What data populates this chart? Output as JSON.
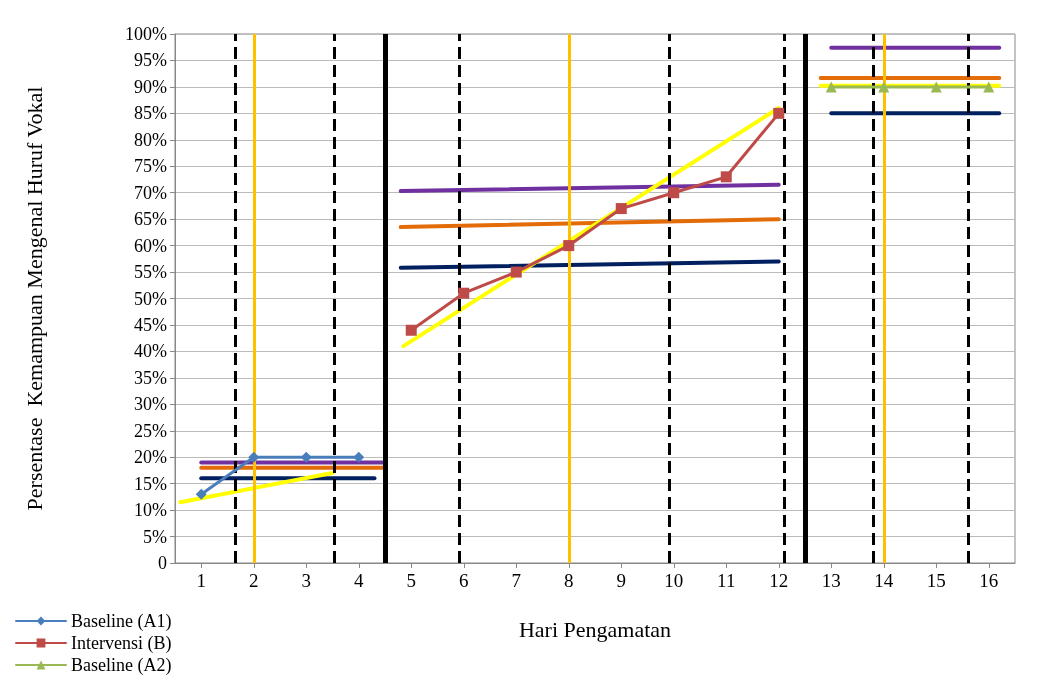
{
  "chart_data": {
    "type": "line",
    "xlabel": "Hari Pengamatan",
    "ylabel": "Persentase  Kemampuan Mengenal Huruf Vokal",
    "xlim": [
      0.5,
      16.5
    ],
    "xticks": [
      1,
      2,
      3,
      4,
      5,
      6,
      7,
      8,
      9,
      10,
      11,
      12,
      13,
      14,
      15,
      16
    ],
    "ylim": [
      0,
      100
    ],
    "yticks": [
      {
        "value": 0,
        "label": "0"
      },
      {
        "value": 5,
        "label": "5%"
      },
      {
        "value": 10,
        "label": "10%"
      },
      {
        "value": 15,
        "label": "15%"
      },
      {
        "value": 20,
        "label": "20%"
      },
      {
        "value": 25,
        "label": "25%"
      },
      {
        "value": 30,
        "label": "30%"
      },
      {
        "value": 35,
        "label": "35%"
      },
      {
        "value": 40,
        "label": "40%"
      },
      {
        "value": 45,
        "label": "45%"
      },
      {
        "value": 50,
        "label": "50%"
      },
      {
        "value": 55,
        "label": "55%"
      },
      {
        "value": 60,
        "label": "60%"
      },
      {
        "value": 65,
        "label": "65%"
      },
      {
        "value": 70,
        "label": "70%"
      },
      {
        "value": 75,
        "label": "75%"
      },
      {
        "value": 80,
        "label": "80%"
      },
      {
        "value": 85,
        "label": "85%"
      },
      {
        "value": 90,
        "label": "90%"
      },
      {
        "value": 95,
        "label": "95%"
      },
      {
        "value": 100,
        "label": "100%"
      }
    ],
    "grid": "y",
    "legend": "bottom left",
    "series": [
      {
        "name": "Baseline (A1)",
        "color": "#4a7ebb",
        "marker": "diamond",
        "x": [
          1,
          2,
          3,
          4
        ],
        "values": [
          13,
          20,
          20,
          20
        ]
      },
      {
        "name": "Intervensi (B)",
        "color": "#be4b48",
        "marker": "square",
        "x": [
          5,
          6,
          7,
          8,
          9,
          10,
          11,
          12
        ],
        "values": [
          44,
          51,
          55,
          60,
          67,
          70,
          73,
          85
        ]
      },
      {
        "name": "Baseline (A2)",
        "color": "#98b954",
        "marker": "triangle",
        "x": [
          13,
          14,
          15,
          16
        ],
        "values": [
          90,
          90,
          90,
          90
        ]
      },
      {
        "color": "#7030a0",
        "marker": "none",
        "x": [
          1,
          4.5
        ],
        "values": [
          19,
          19
        ]
      },
      {
        "color": "#e36c09",
        "marker": "none",
        "x": [
          1,
          4.5
        ],
        "values": [
          18,
          18
        ]
      },
      {
        "color": "#002060",
        "marker": "none",
        "x": [
          1,
          4.3
        ],
        "values": [
          16,
          16
        ]
      },
      {
        "color": "#ffff00",
        "marker": "none",
        "x": [
          0.6,
          3.5
        ],
        "values": [
          11.5,
          17
        ]
      },
      {
        "color": "#7030a0",
        "marker": "none",
        "x": [
          4.8,
          12
        ],
        "values": [
          70.3,
          71.5
        ]
      },
      {
        "color": "#e36c09",
        "marker": "none",
        "x": [
          4.8,
          12
        ],
        "values": [
          63.5,
          65
        ]
      },
      {
        "color": "#002060",
        "marker": "none",
        "x": [
          4.8,
          12
        ],
        "values": [
          55.8,
          57
        ]
      },
      {
        "color": "#ffff00",
        "marker": "none",
        "x": [
          4.85,
          12
        ],
        "values": [
          41,
          86
        ]
      },
      {
        "color": "#7030a0",
        "marker": "none",
        "x": [
          13,
          16.2
        ],
        "values": [
          97.4,
          97.4
        ]
      },
      {
        "color": "#e36c09",
        "marker": "none",
        "x": [
          12.8,
          16.2
        ],
        "values": [
          91.7,
          91.7
        ]
      },
      {
        "color": "#ffff00",
        "marker": "none",
        "x": [
          12.8,
          16.2
        ],
        "values": [
          90.2,
          90.2
        ]
      },
      {
        "color": "#002060",
        "marker": "none",
        "x": [
          13,
          16.2
        ],
        "values": [
          85,
          85
        ]
      }
    ],
    "ref_lines": [
      {
        "axis": "x",
        "value": 1.64,
        "color": "#000000",
        "line_style": "dashed"
      },
      {
        "axis": "x",
        "value": 2,
        "color": "#ffc000",
        "line_style": "solid"
      },
      {
        "axis": "x",
        "value": 3.54,
        "color": "#000000",
        "line_style": "dashed"
      },
      {
        "axis": "x",
        "value": 4.5,
        "color": "#000000",
        "line_style": "solid"
      },
      {
        "axis": "x",
        "value": 5.92,
        "color": "#000000",
        "line_style": "dashed"
      },
      {
        "axis": "x",
        "value": 8,
        "color": "#ffc000",
        "line_style": "solid"
      },
      {
        "axis": "x",
        "value": 9.92,
        "color": "#000000",
        "line_style": "dashed"
      },
      {
        "axis": "x",
        "value": 12.1,
        "color": "#000000",
        "line_style": "dashed"
      },
      {
        "axis": "x",
        "value": 12.5,
        "color": "#000000",
        "line_style": "solid"
      },
      {
        "axis": "x",
        "value": 13.8,
        "color": "#000000",
        "line_style": "dashed"
      },
      {
        "axis": "x",
        "value": 14,
        "color": "#ffc000",
        "line_style": "solid"
      },
      {
        "axis": "x",
        "value": 15.6,
        "color": "#000000",
        "line_style": "dashed"
      }
    ]
  }
}
